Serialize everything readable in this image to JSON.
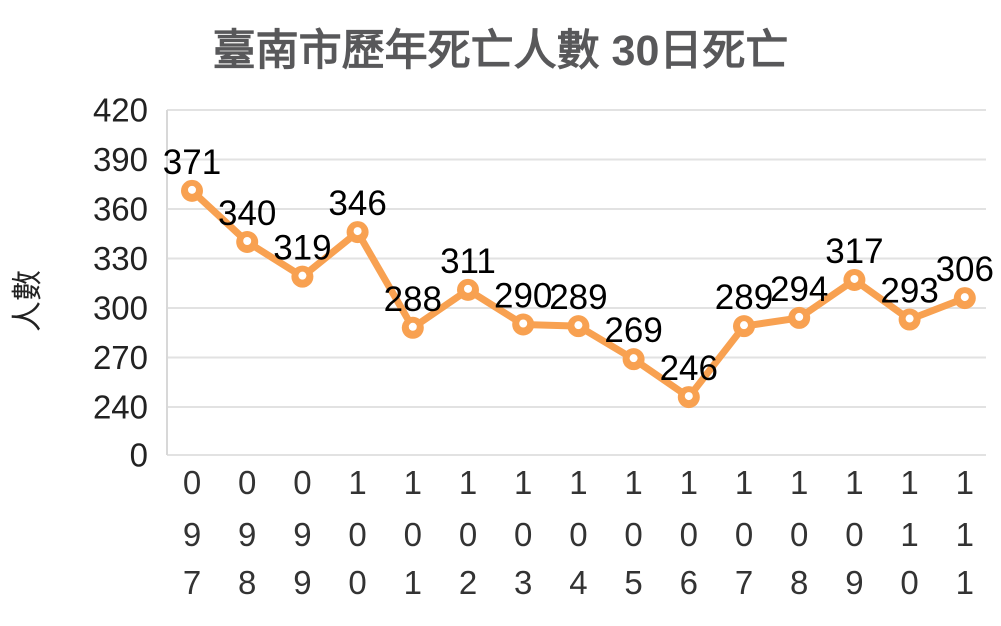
{
  "title": "臺南市歷年死亡人數 30日死亡",
  "chart_data": {
    "type": "line",
    "title": "臺南市歷年死亡人數 30日死亡",
    "xlabel": "",
    "ylabel": "人數",
    "categories": [
      "097",
      "098",
      "099",
      "100",
      "101",
      "102",
      "103",
      "104",
      "105",
      "106",
      "107",
      "108",
      "109",
      "110",
      "111"
    ],
    "values": [
      371,
      340,
      319,
      346,
      288,
      311,
      290,
      289,
      269,
      246,
      289,
      294,
      317,
      293,
      306
    ],
    "series": [
      {
        "name": "30日死亡",
        "values": [
          371,
          340,
          319,
          346,
          288,
          311,
          290,
          289,
          269,
          246,
          289,
          294,
          317,
          293,
          306
        ]
      }
    ],
    "y_ticks": [
      0,
      240,
      270,
      300,
      330,
      360,
      390,
      420
    ],
    "axis_note": "broken y-axis: 0 tick then range 240-420 step 30",
    "grid": "horizontal gridlines on",
    "legend": "none",
    "colors": {
      "line": "#f8a151",
      "marker_fill": "#f8a151",
      "marker_center": "#ffffff",
      "gridline": "#e2e2e2",
      "axis_line": "#d8d8d8",
      "title_text": "#58585a",
      "tick_text": "#222222",
      "data_label_text": "#000000"
    }
  }
}
